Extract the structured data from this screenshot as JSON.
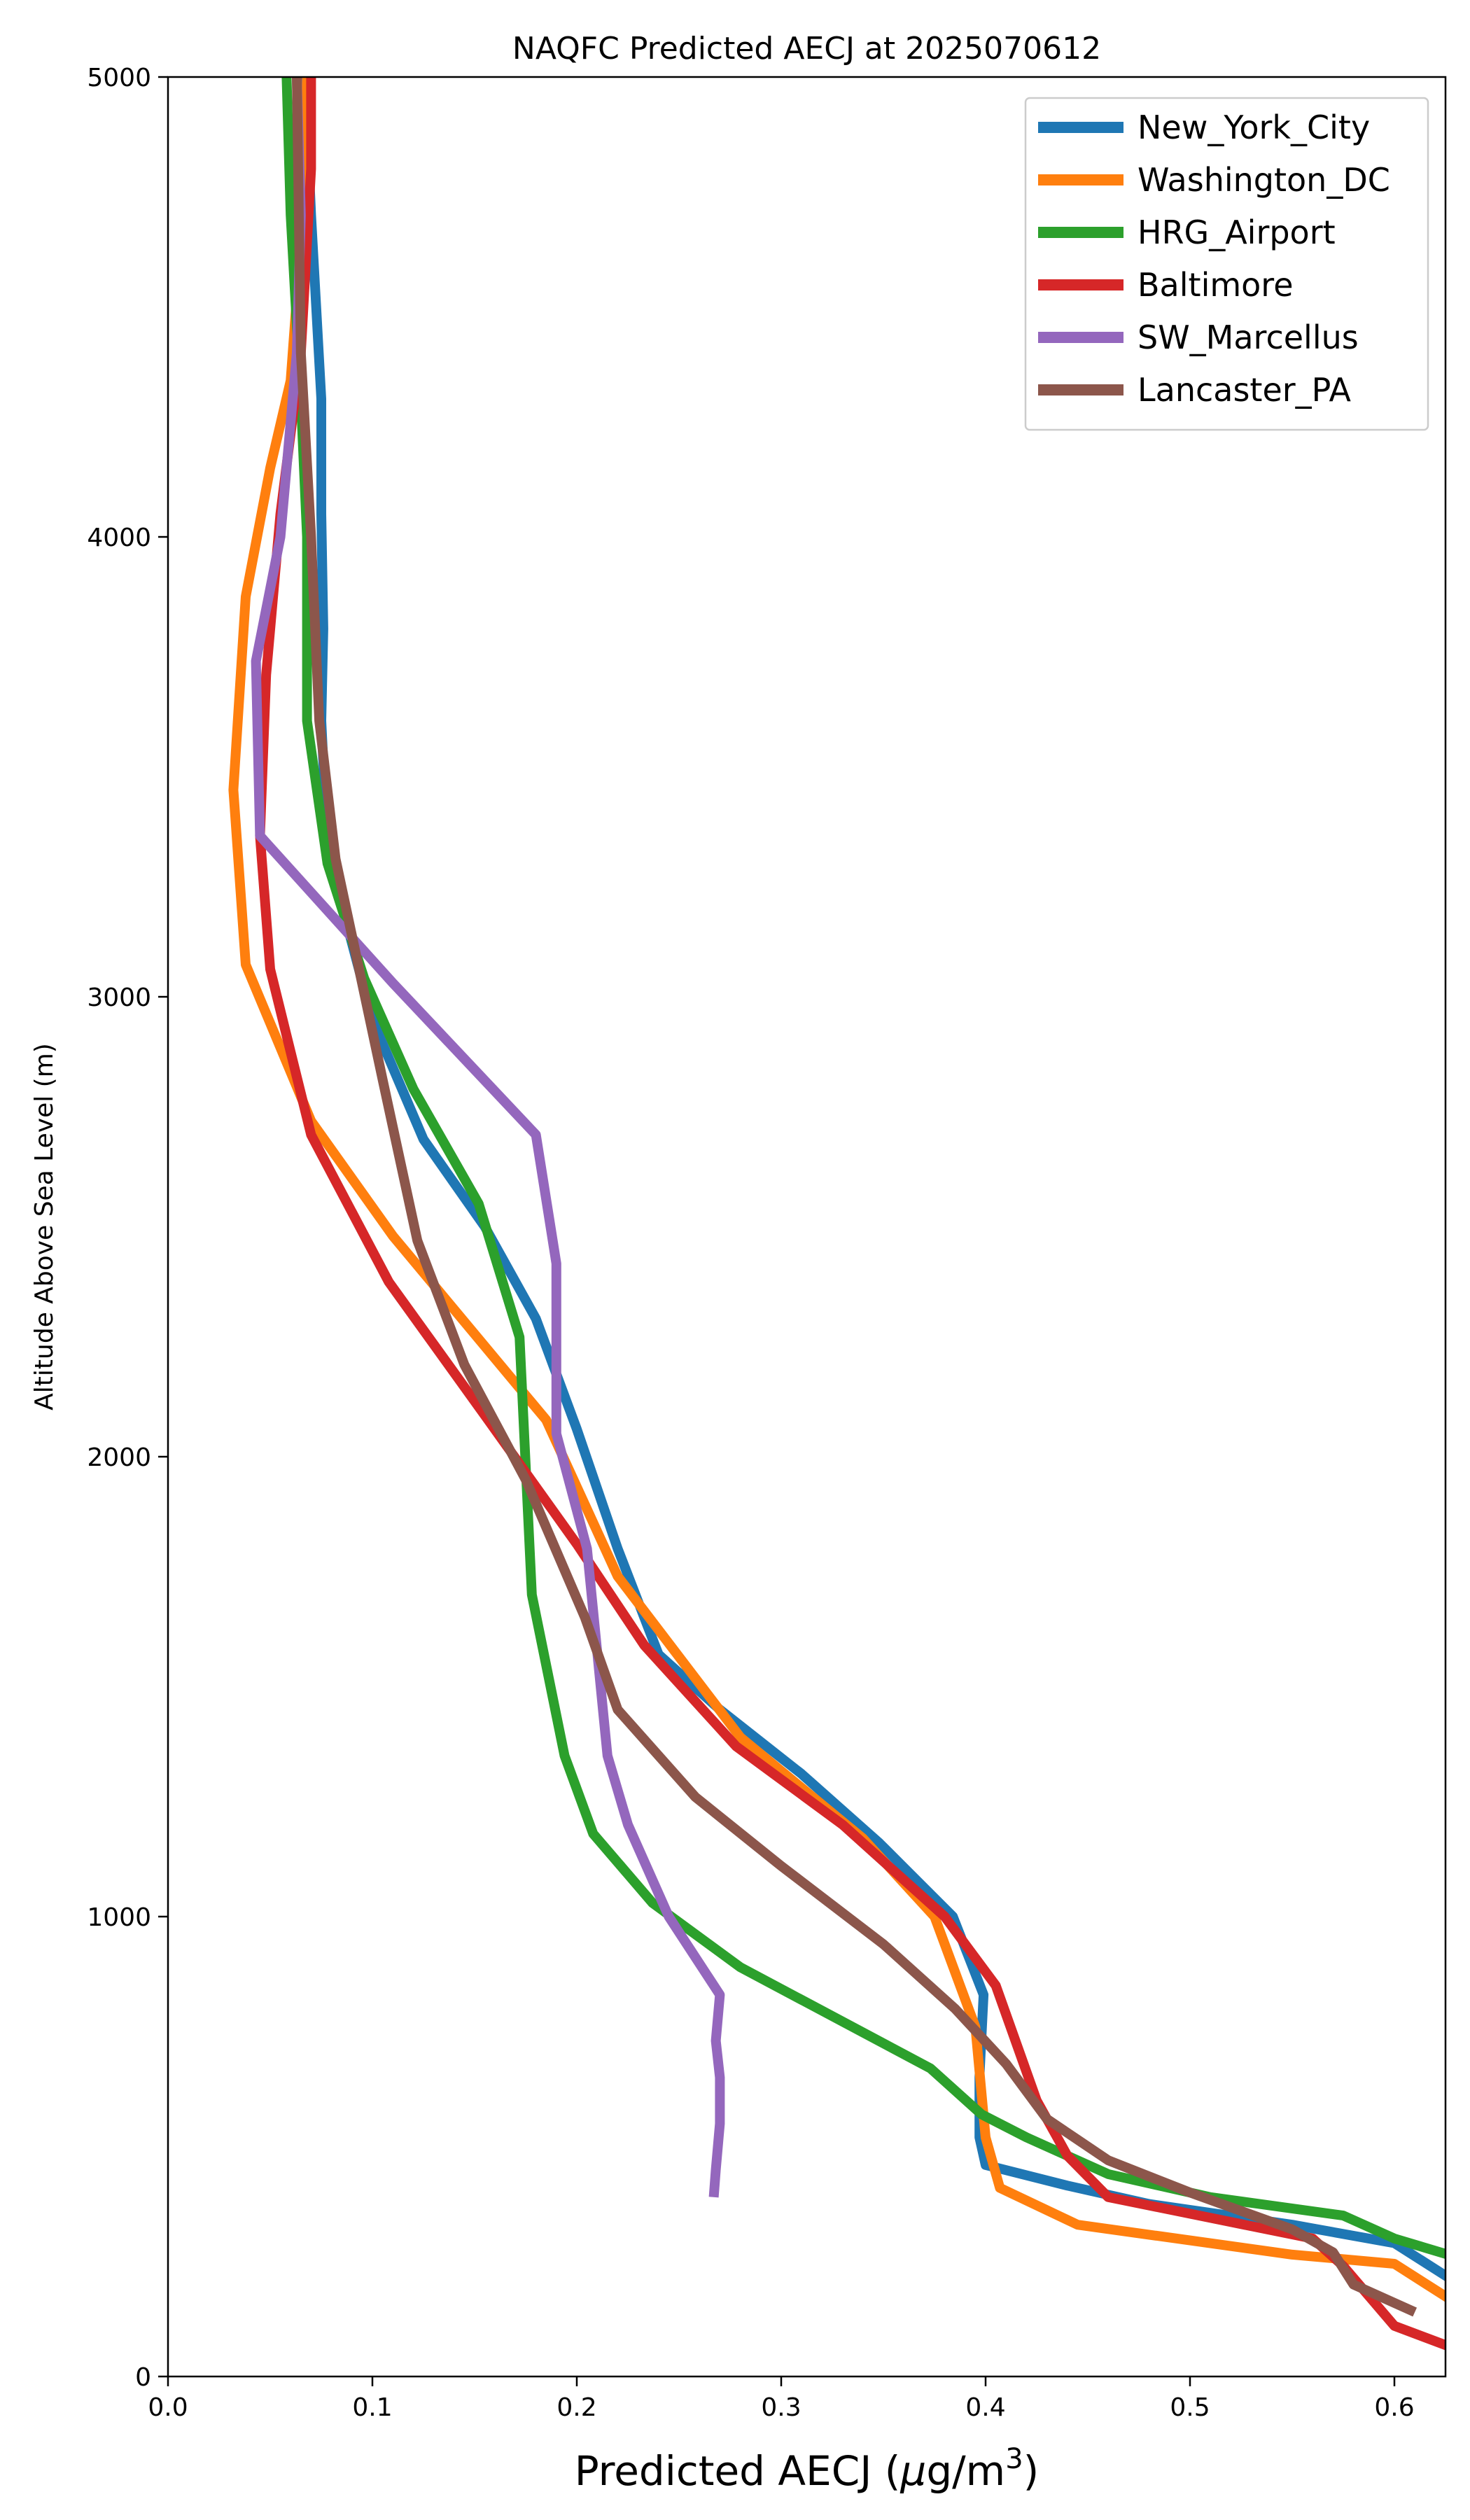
{
  "chart_data": {
    "type": "line",
    "title": "NAQFC Predicted AECJ at 2025070612",
    "xlabel": "Predicted AECJ (μg/m³)",
    "xlabel_base": "Predicted AECJ (",
    "xlabel_mu": "μ",
    "xlabel_unit": "g/m",
    "xlabel_sup": "3",
    "xlabel_close": ")",
    "ylabel": "Altitude Above Sea Level (m)",
    "xlim": [
      0.0,
      0.625
    ],
    "ylim": [
      0,
      5000
    ],
    "xticks": [
      "0.0",
      "0.1",
      "0.2",
      "0.3",
      "0.4",
      "0.5",
      "0.6"
    ],
    "xtick_values": [
      0.0,
      0.1,
      0.2,
      0.3,
      0.4,
      0.5,
      0.6
    ],
    "yticks": [
      "0",
      "1000",
      "2000",
      "3000",
      "4000",
      "5000"
    ],
    "ytick_values": [
      0,
      1000,
      2000,
      3000,
      4000,
      5000
    ],
    "grid": false,
    "legend_position": "top-right",
    "series": [
      {
        "name": "New_York_City",
        "color": "#1f77b4",
        "points": [
          [
            0.63,
            205
          ],
          [
            0.6,
            290
          ],
          [
            0.55,
            330
          ],
          [
            0.48,
            375
          ],
          [
            0.44,
            415
          ],
          [
            0.4,
            460
          ],
          [
            0.397,
            520
          ],
          [
            0.397,
            650
          ],
          [
            0.399,
            830
          ],
          [
            0.384,
            1000
          ],
          [
            0.348,
            1160
          ],
          [
            0.31,
            1310
          ],
          [
            0.27,
            1450
          ],
          [
            0.24,
            1570
          ],
          [
            0.22,
            1800
          ],
          [
            0.2,
            2060
          ],
          [
            0.18,
            2300
          ],
          [
            0.155,
            2500
          ],
          [
            0.125,
            2690
          ],
          [
            0.1,
            2950
          ],
          [
            0.085,
            3200
          ],
          [
            0.077,
            3420
          ],
          [
            0.075,
            3600
          ],
          [
            0.076,
            3800
          ],
          [
            0.075,
            4050
          ],
          [
            0.075,
            4300
          ],
          [
            0.07,
            4700
          ],
          [
            0.067,
            5000
          ]
        ]
      },
      {
        "name": "Washington_DC",
        "color": "#ff7f0e",
        "points": [
          [
            0.63,
            160
          ],
          [
            0.6,
            245
          ],
          [
            0.55,
            265
          ],
          [
            0.445,
            330
          ],
          [
            0.407,
            410
          ],
          [
            0.4,
            520
          ],
          [
            0.395,
            760
          ],
          [
            0.375,
            1000
          ],
          [
            0.34,
            1170
          ],
          [
            0.28,
            1390
          ],
          [
            0.22,
            1740
          ],
          [
            0.185,
            2080
          ],
          [
            0.11,
            2480
          ],
          [
            0.07,
            2730
          ],
          [
            0.038,
            3070
          ],
          [
            0.032,
            3450
          ],
          [
            0.038,
            3870
          ],
          [
            0.05,
            4150
          ],
          [
            0.06,
            4340
          ],
          [
            0.066,
            4700
          ],
          [
            0.068,
            5000
          ]
        ]
      },
      {
        "name": "HRG_Airport",
        "color": "#2ca02c",
        "points": [
          [
            0.63,
            260
          ],
          [
            0.6,
            300
          ],
          [
            0.575,
            350
          ],
          [
            0.51,
            390
          ],
          [
            0.46,
            440
          ],
          [
            0.42,
            520
          ],
          [
            0.398,
            570
          ],
          [
            0.373,
            670
          ],
          [
            0.28,
            890
          ],
          [
            0.237,
            1030
          ],
          [
            0.208,
            1180
          ],
          [
            0.194,
            1350
          ],
          [
            0.178,
            1700
          ],
          [
            0.172,
            2260
          ],
          [
            0.152,
            2550
          ],
          [
            0.12,
            2800
          ],
          [
            0.096,
            3040
          ],
          [
            0.078,
            3290
          ],
          [
            0.068,
            3600
          ],
          [
            0.068,
            4000
          ],
          [
            0.065,
            4300
          ],
          [
            0.06,
            4700
          ],
          [
            0.058,
            5000
          ]
        ]
      },
      {
        "name": "Baltimore",
        "color": "#d62728",
        "points": [
          [
            0.63,
            60
          ],
          [
            0.6,
            110
          ],
          [
            0.575,
            240
          ],
          [
            0.56,
            300
          ],
          [
            0.46,
            390
          ],
          [
            0.44,
            480
          ],
          [
            0.425,
            600
          ],
          [
            0.405,
            850
          ],
          [
            0.38,
            1000
          ],
          [
            0.33,
            1200
          ],
          [
            0.278,
            1370
          ],
          [
            0.233,
            1590
          ],
          [
            0.2,
            1810
          ],
          [
            0.155,
            2090
          ],
          [
            0.108,
            2380
          ],
          [
            0.07,
            2700
          ],
          [
            0.05,
            3060
          ],
          [
            0.045,
            3350
          ],
          [
            0.048,
            3700
          ],
          [
            0.055,
            4050
          ],
          [
            0.065,
            4400
          ],
          [
            0.07,
            4800
          ],
          [
            0.07,
            5000
          ]
        ]
      },
      {
        "name": "SW_Marcellus",
        "color": "#9467bd",
        "points": [
          [
            0.267,
            390
          ],
          [
            0.268,
            450
          ],
          [
            0.27,
            550
          ],
          [
            0.27,
            650
          ],
          [
            0.268,
            730
          ],
          [
            0.27,
            830
          ],
          [
            0.245,
            1000
          ],
          [
            0.225,
            1200
          ],
          [
            0.215,
            1350
          ],
          [
            0.205,
            1800
          ],
          [
            0.19,
            2050
          ],
          [
            0.19,
            2420
          ],
          [
            0.18,
            2700
          ],
          [
            0.11,
            3030
          ],
          [
            0.045,
            3350
          ],
          [
            0.043,
            3730
          ],
          [
            0.055,
            4000
          ],
          [
            0.063,
            4400
          ],
          [
            0.065,
            4700
          ],
          [
            0.063,
            5000
          ]
        ]
      },
      {
        "name": "Lancaster_PA",
        "color": "#8c564b",
        "points": [
          [
            0.61,
            140
          ],
          [
            0.58,
            200
          ],
          [
            0.57,
            270
          ],
          [
            0.55,
            320
          ],
          [
            0.5,
            400
          ],
          [
            0.46,
            470
          ],
          [
            0.43,
            560
          ],
          [
            0.41,
            680
          ],
          [
            0.385,
            800
          ],
          [
            0.35,
            940
          ],
          [
            0.3,
            1110
          ],
          [
            0.258,
            1260
          ],
          [
            0.22,
            1450
          ],
          [
            0.204,
            1650
          ],
          [
            0.175,
            1950
          ],
          [
            0.145,
            2200
          ],
          [
            0.122,
            2470
          ],
          [
            0.105,
            2820
          ],
          [
            0.082,
            3300
          ],
          [
            0.074,
            3600
          ],
          [
            0.07,
            4000
          ],
          [
            0.065,
            4400
          ],
          [
            0.063,
            5000
          ]
        ]
      }
    ]
  }
}
